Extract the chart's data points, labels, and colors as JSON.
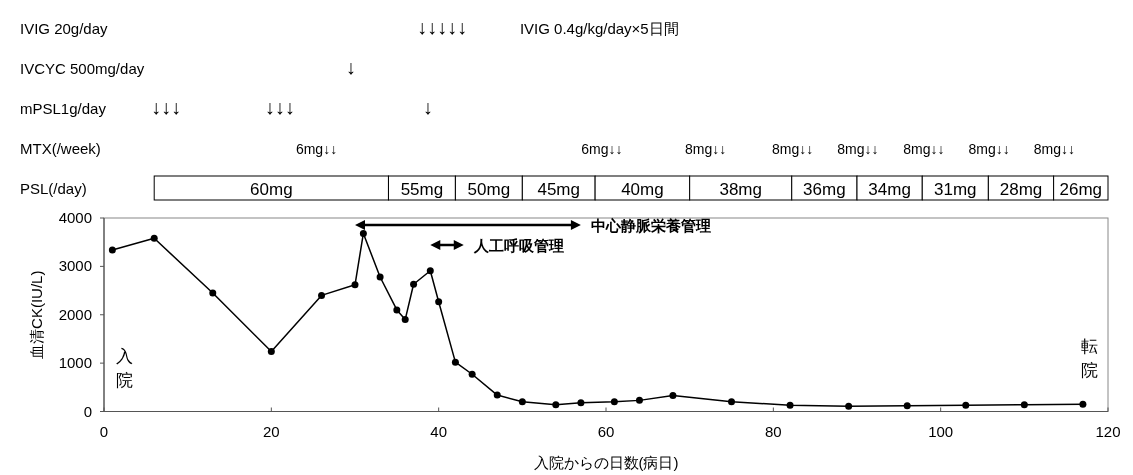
{
  "chart_data": [
    {
      "type": "bar",
      "orientation": "horizontal",
      "tick_labels": "y",
      "xlim": [
        0,
        120
      ],
      "categories": [
        "IVIG 20g/day",
        "IVCYC 500mg/day",
        "mPSL1g/day",
        "MTX(/week)",
        "PSL(/day)"
      ],
      "series": [
        {
          "color": "#ffffff",
          "base": [
            null,
            null,
            null,
            null,
            6
          ],
          "values": [
            null,
            null,
            null,
            null,
            28
          ],
          "name": "60mg"
        },
        {
          "color": "#ffffff",
          "base": [
            null,
            null,
            null,
            null,
            34
          ],
          "values": [
            null,
            null,
            null,
            null,
            8
          ],
          "name": "55mg"
        },
        {
          "color": "#ffffff",
          "base": [
            null,
            null,
            null,
            null,
            42
          ],
          "values": [
            null,
            null,
            null,
            null,
            8
          ],
          "name": "50mg"
        },
        {
          "color": "#ffffff",
          "base": [
            null,
            null,
            null,
            null,
            50
          ],
          "values": [
            null,
            null,
            null,
            null,
            8.7
          ],
          "name": "45mg"
        },
        {
          "color": "#ffffff",
          "base": [
            null,
            null,
            null,
            null,
            58.7
          ],
          "values": [
            null,
            null,
            null,
            null,
            11.3
          ],
          "name": "40mg"
        },
        {
          "color": "#ffffff",
          "base": [
            null,
            null,
            null,
            null,
            70
          ],
          "values": [
            null,
            null,
            null,
            null,
            12.2
          ],
          "name": "38mg"
        },
        {
          "color": "#ffffff",
          "base": [
            null,
            null,
            null,
            null,
            82.2
          ],
          "values": [
            null,
            null,
            null,
            null,
            7.8
          ],
          "name": "36mg"
        },
        {
          "color": "#ffffff",
          "base": [
            null,
            null,
            null,
            null,
            90
          ],
          "values": [
            null,
            null,
            null,
            null,
            7.8
          ],
          "name": "34mg"
        },
        {
          "color": "#ffffff",
          "base": [
            null,
            null,
            null,
            null,
            97.8
          ],
          "values": [
            null,
            null,
            null,
            null,
            7.9
          ],
          "name": "31mg"
        },
        {
          "color": "#ffffff",
          "base": [
            null,
            null,
            null,
            null,
            105.7
          ],
          "values": [
            null,
            null,
            null,
            null,
            7.8
          ],
          "name": "28mg"
        },
        {
          "color": "#ffffff",
          "base": [
            null,
            null,
            null,
            null,
            113.5
          ],
          "values": [
            null,
            null,
            null,
            null,
            6.5
          ],
          "name": "26mg"
        }
      ],
      "annotations": [
        "↓↓↓↓↓",
        "IVIG 0.4g/kg/day×5日間",
        "↓",
        "↓↓↓",
        "↓↓↓",
        "↓",
        "6mg↓↓",
        "6mg↓↓",
        "8mg↓↓",
        "8mg↓↓",
        "8mg↓↓",
        "8mg↓↓",
        "8mg↓↓",
        "8mg↓↓"
      ]
    },
    {
      "type": "line",
      "xlabel": "入院からの日数(病日)",
      "ylabel": "血清CK(IU/L)",
      "x": [
        1,
        6,
        13,
        20,
        26,
        30,
        31,
        33,
        35,
        36,
        37,
        39,
        40,
        42,
        44,
        47,
        50,
        54,
        57,
        61,
        64,
        68,
        75,
        82,
        89,
        96,
        103,
        110,
        117
      ],
      "series": [
        {
          "color": "#000000",
          "values": [
            3340,
            3580,
            2450,
            1240,
            2400,
            2620,
            3680,
            2780,
            2100,
            1900,
            2630,
            2910,
            2270,
            1020,
            770,
            340,
            200,
            140,
            180,
            200,
            230,
            330,
            200,
            130,
            110,
            120,
            130,
            140,
            150
          ]
        }
      ],
      "marker": "circle",
      "line_style": "solid",
      "xlim": [
        0,
        120
      ],
      "xticks": [
        0,
        20,
        40,
        60,
        80,
        100,
        120
      ],
      "ylim": [
        0,
        4000
      ],
      "yticks": [
        0,
        1000,
        2000,
        3000,
        4000
      ],
      "annotations": [
        "中心静脈栄養管理",
        "人工呼吸管理",
        "入院",
        "転院"
      ]
    }
  ]
}
